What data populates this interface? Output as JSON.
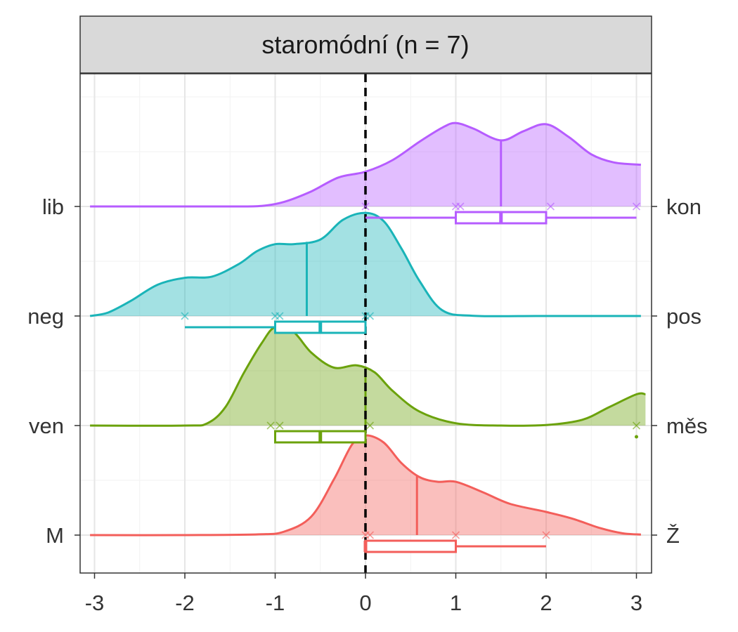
{
  "chart_data": {
    "type": "ridgeline",
    "title": "staromódní (n = 7)",
    "xlabel": "",
    "ylabel": "",
    "xlim": [
      -3.1,
      3.1
    ],
    "x_ticks": [
      -3,
      -2,
      -1,
      0,
      1,
      2,
      3
    ],
    "reference_line": {
      "x": 0,
      "style": "dashed",
      "color": "#000000"
    },
    "grid": true,
    "series": [
      {
        "left_label": "lib",
        "right_label": "kon",
        "color": "#B65CFF",
        "density_x": [
          -3.05,
          -2,
          -1.5,
          -1.15,
          -0.9,
          -0.6,
          -0.3,
          0,
          0.3,
          0.6,
          0.85,
          1.0,
          1.2,
          1.5,
          1.75,
          2.0,
          2.25,
          2.5,
          2.75,
          3.05
        ],
        "density_y": [
          0,
          0,
          0,
          0.005,
          0.04,
          0.13,
          0.25,
          0.3,
          0.4,
          0.56,
          0.68,
          0.72,
          0.67,
          0.57,
          0.65,
          0.71,
          0.6,
          0.45,
          0.38,
          0.36
        ],
        "mean": 1.5,
        "points": [
          0,
          1,
          1.05,
          2.05,
          3
        ],
        "box": {
          "min": 0,
          "q1": 1,
          "median": 1.5,
          "q3": 2,
          "max": 3
        }
      },
      {
        "left_label": "neg",
        "right_label": "pos",
        "color": "#1AB4B8",
        "density_x": [
          -3.05,
          -2.85,
          -2.6,
          -2.3,
          -2.0,
          -1.7,
          -1.4,
          -1.2,
          -1.0,
          -0.8,
          -0.5,
          -0.25,
          0,
          0.2,
          0.4,
          0.6,
          0.85,
          1.2,
          2,
          3.05
        ],
        "density_y": [
          0,
          0.03,
          0.13,
          0.27,
          0.33,
          0.34,
          0.45,
          0.56,
          0.62,
          0.62,
          0.66,
          0.83,
          0.89,
          0.82,
          0.58,
          0.3,
          0.05,
          0.002,
          0,
          0
        ],
        "mean": -0.65,
        "points": [
          -2,
          -1,
          -0.95,
          0,
          0.05
        ],
        "box": {
          "min": -2,
          "q1": -1,
          "median": -0.5,
          "q3": 0,
          "max": 0
        }
      },
      {
        "left_label": "ven",
        "right_label": "měs",
        "color": "#6BA20C",
        "density_x": [
          -3.05,
          -2,
          -1.75,
          -1.55,
          -1.35,
          -1.15,
          -1.0,
          -0.8,
          -0.6,
          -0.35,
          -0.1,
          0.1,
          0.3,
          0.6,
          1.0,
          1.5,
          2.0,
          2.4,
          2.7,
          3.0,
          3.1
        ],
        "density_y": [
          0,
          0,
          0.02,
          0.16,
          0.45,
          0.71,
          0.85,
          0.81,
          0.63,
          0.5,
          0.52,
          0.46,
          0.3,
          0.12,
          0.02,
          0,
          0.005,
          0.05,
          0.16,
          0.27,
          0.27
        ],
        "mean": 0,
        "points": [
          -1.05,
          -0.95,
          0.05,
          3
        ],
        "outliers": [
          3
        ],
        "box": {
          "min": -1,
          "q1": -1,
          "median": -0.5,
          "q3": 0,
          "max": 0
        }
      },
      {
        "left_label": "M",
        "right_label": "Ž",
        "color": "#F35E5A",
        "density_x": [
          -3.05,
          -2,
          -1.2,
          -0.9,
          -0.6,
          -0.35,
          -0.15,
          0,
          0.2,
          0.4,
          0.6,
          0.8,
          1.0,
          1.3,
          1.6,
          2.0,
          2.3,
          2.6,
          2.85,
          3.05
        ],
        "density_y": [
          0,
          0,
          0.006,
          0.03,
          0.16,
          0.48,
          0.78,
          0.86,
          0.8,
          0.62,
          0.5,
          0.46,
          0.46,
          0.37,
          0.27,
          0.2,
          0.14,
          0.06,
          0.015,
          0.005
        ],
        "mean": 0.57,
        "points": [
          0,
          0.05,
          1,
          2
        ],
        "box": {
          "min": 0,
          "q1": 0,
          "median": 0,
          "q3": 1,
          "max": 2
        }
      }
    ]
  },
  "colors": {
    "panel_border": "#333333",
    "strip_fill": "#D9D9D9",
    "grid_major": "#E6E6E6",
    "grid_minor": "#F2F2F2"
  }
}
